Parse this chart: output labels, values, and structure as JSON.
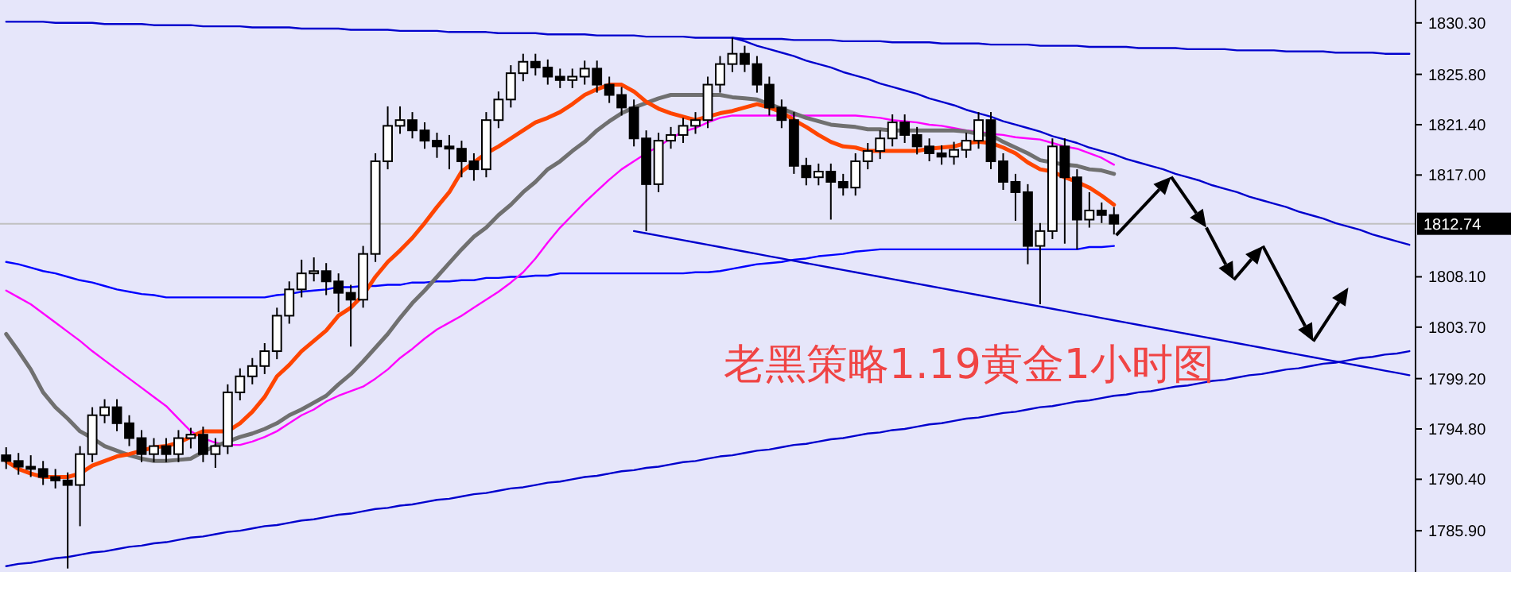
{
  "chart_data": {
    "type": "candlestick",
    "categories": [
      null,
      null,
      null,
      null,
      null,
      null,
      null,
      null,
      null,
      null,
      null,
      null,
      null,
      null,
      null,
      null,
      null,
      null,
      null,
      null,
      null,
      null,
      null,
      null,
      null,
      null,
      null,
      null,
      null,
      null,
      null,
      null,
      null,
      null,
      null,
      null,
      null,
      null,
      null,
      null,
      null,
      null,
      null,
      null,
      null,
      null,
      null,
      null,
      null,
      null,
      null,
      null,
      null,
      null,
      null,
      null,
      null,
      null,
      null,
      null,
      null,
      null,
      null,
      null,
      null,
      null,
      null,
      null,
      null,
      null,
      null,
      null,
      null,
      null,
      null,
      null,
      null,
      null,
      null,
      null,
      null,
      null,
      null,
      null,
      null,
      null,
      null,
      null,
      null,
      null,
      null,
      null,
      null,
      null,
      null,
      null,
      null,
      null,
      null,
      null,
      null,
      null,
      null,
      null,
      null,
      null,
      null,
      null,
      null,
      null,
      null,
      null,
      null,
      null,
      null
    ],
    "ohlc": [
      [
        1792.5,
        1793.2,
        1791.3,
        1792.0
      ],
      [
        1792.0,
        1792.7,
        1790.8,
        1791.5
      ],
      [
        1791.5,
        1792.5,
        1790.6,
        1791.3
      ],
      [
        1791.3,
        1792.0,
        1789.9,
        1790.6
      ],
      [
        1790.6,
        1791.3,
        1789.6,
        1790.3
      ],
      [
        1790.3,
        1791.0,
        1782.6,
        1789.9
      ],
      [
        1789.9,
        1793.3,
        1786.3,
        1792.6
      ],
      [
        1792.6,
        1796.7,
        1791.9,
        1796.0
      ],
      [
        1796.0,
        1797.4,
        1795.3,
        1796.7
      ],
      [
        1796.7,
        1797.4,
        1794.6,
        1795.3
      ],
      [
        1795.3,
        1796.0,
        1793.3,
        1794.0
      ],
      [
        1794.0,
        1794.7,
        1791.9,
        1792.6
      ],
      [
        1792.6,
        1794.0,
        1791.9,
        1793.3
      ],
      [
        1793.3,
        1794.0,
        1791.9,
        1792.6
      ],
      [
        1792.6,
        1794.7,
        1791.9,
        1794.0
      ],
      [
        1794.0,
        1794.9,
        1793.1,
        1794.3
      ],
      [
        1794.3,
        1795.0,
        1791.9,
        1792.6
      ],
      [
        1792.6,
        1794.0,
        1791.4,
        1793.3
      ],
      [
        1793.3,
        1798.7,
        1792.6,
        1798.0
      ],
      [
        1798.0,
        1800.1,
        1797.3,
        1799.4
      ],
      [
        1799.4,
        1801.0,
        1798.7,
        1800.3
      ],
      [
        1800.3,
        1802.3,
        1799.6,
        1801.6
      ],
      [
        1801.6,
        1805.4,
        1800.9,
        1804.7
      ],
      [
        1804.7,
        1807.7,
        1804.0,
        1807.0
      ],
      [
        1807.0,
        1809.6,
        1806.3,
        1808.4
      ],
      [
        1808.4,
        1809.8,
        1807.7,
        1808.6
      ],
      [
        1808.6,
        1809.3,
        1806.5,
        1807.7
      ],
      [
        1807.7,
        1808.4,
        1805.0,
        1806.7
      ],
      [
        1806.7,
        1807.4,
        1802.0,
        1806.1
      ],
      [
        1806.1,
        1810.8,
        1805.4,
        1810.1
      ],
      [
        1810.1,
        1818.9,
        1809.4,
        1818.2
      ],
      [
        1818.2,
        1823.0,
        1817.5,
        1821.3
      ],
      [
        1821.3,
        1823.0,
        1820.6,
        1821.8
      ],
      [
        1821.8,
        1822.5,
        1820.2,
        1820.9
      ],
      [
        1820.9,
        1821.6,
        1819.3,
        1820.0
      ],
      [
        1820.0,
        1820.7,
        1818.5,
        1819.5
      ],
      [
        1819.5,
        1820.5,
        1817.5,
        1819.3
      ],
      [
        1819.3,
        1820.0,
        1816.8,
        1818.2
      ],
      [
        1818.2,
        1818.9,
        1816.5,
        1817.5
      ],
      [
        1817.5,
        1822.5,
        1816.8,
        1821.8
      ],
      [
        1821.8,
        1824.3,
        1821.1,
        1823.6
      ],
      [
        1823.6,
        1826.6,
        1822.9,
        1825.9
      ],
      [
        1825.9,
        1827.6,
        1825.2,
        1826.9
      ],
      [
        1826.9,
        1827.6,
        1825.7,
        1826.4
      ],
      [
        1826.4,
        1827.1,
        1824.9,
        1825.6
      ],
      [
        1825.6,
        1826.3,
        1824.6,
        1825.3
      ],
      [
        1825.3,
        1826.3,
        1824.6,
        1825.6
      ],
      [
        1825.6,
        1827.0,
        1824.9,
        1826.3
      ],
      [
        1826.3,
        1827.0,
        1824.2,
        1824.9
      ],
      [
        1824.9,
        1825.6,
        1823.3,
        1824.0
      ],
      [
        1824.0,
        1824.7,
        1822.2,
        1822.9
      ],
      [
        1822.9,
        1823.6,
        1819.5,
        1820.2
      ],
      [
        1820.2,
        1820.9,
        1812.1,
        1816.2
      ],
      [
        1816.2,
        1820.7,
        1815.5,
        1820.0
      ],
      [
        1820.0,
        1821.2,
        1819.3,
        1820.5
      ],
      [
        1820.5,
        1822.0,
        1819.8,
        1821.3
      ],
      [
        1821.3,
        1822.5,
        1820.6,
        1821.8
      ],
      [
        1821.8,
        1825.6,
        1821.1,
        1824.9
      ],
      [
        1824.9,
        1827.4,
        1824.2,
        1826.7
      ],
      [
        1826.7,
        1829.0,
        1826.0,
        1827.6
      ],
      [
        1827.6,
        1828.3,
        1826.0,
        1826.7
      ],
      [
        1826.7,
        1827.4,
        1824.2,
        1824.9
      ],
      [
        1824.9,
        1825.6,
        1822.2,
        1822.9
      ],
      [
        1822.9,
        1823.6,
        1821.1,
        1821.8
      ],
      [
        1821.8,
        1822.5,
        1817.1,
        1817.8
      ],
      [
        1817.8,
        1818.5,
        1816.1,
        1816.8
      ],
      [
        1816.8,
        1818.0,
        1816.1,
        1817.3
      ],
      [
        1817.3,
        1818.0,
        1813.1,
        1816.4
      ],
      [
        1816.4,
        1817.1,
        1815.2,
        1815.9
      ],
      [
        1815.9,
        1818.9,
        1815.2,
        1818.2
      ],
      [
        1818.2,
        1819.8,
        1817.5,
        1819.1
      ],
      [
        1819.1,
        1820.9,
        1818.4,
        1820.2
      ],
      [
        1820.2,
        1822.3,
        1819.5,
        1821.6
      ],
      [
        1821.6,
        1822.3,
        1819.8,
        1820.5
      ],
      [
        1820.5,
        1821.2,
        1818.8,
        1819.5
      ],
      [
        1819.5,
        1820.2,
        1818.2,
        1818.9
      ],
      [
        1818.9,
        1819.6,
        1817.9,
        1818.6
      ],
      [
        1818.6,
        1819.9,
        1817.9,
        1819.2
      ],
      [
        1819.2,
        1820.7,
        1818.5,
        1820.0
      ],
      [
        1820.0,
        1822.5,
        1819.3,
        1821.8
      ],
      [
        1821.8,
        1822.5,
        1817.5,
        1818.2
      ],
      [
        1818.2,
        1818.9,
        1815.7,
        1816.4
      ],
      [
        1816.4,
        1817.1,
        1813.0,
        1815.5
      ],
      [
        1815.5,
        1816.2,
        1809.2,
        1810.8
      ],
      [
        1810.8,
        1812.8,
        1805.7,
        1812.1
      ],
      [
        1812.1,
        1820.2,
        1811.4,
        1819.5
      ],
      [
        1819.5,
        1820.2,
        1811.0,
        1816.8
      ],
      [
        1816.8,
        1817.5,
        1810.5,
        1813.1
      ],
      [
        1813.1,
        1815.5,
        1812.4,
        1813.9
      ],
      [
        1813.9,
        1814.6,
        1812.8,
        1813.5
      ],
      [
        1813.5,
        1814.2,
        1811.8,
        1812.74
      ],
      null,
      null,
      null,
      null,
      null,
      null,
      null,
      null,
      null,
      null,
      null,
      null,
      null,
      null,
      null,
      null,
      null,
      null,
      null,
      null,
      null,
      null,
      null,
      null
    ],
    "series": [
      {
        "type": "line",
        "color": "#0000ff",
        "values": [
          1809.4,
          1809.2,
          1808.9,
          1808.6,
          1808.4,
          1808.1,
          1807.8,
          1807.6,
          1807.3,
          1807.0,
          1806.8,
          1806.6,
          1806.5,
          1806.3,
          1806.3,
          1806.3,
          1806.3,
          1806.3,
          1806.3,
          1806.3,
          1806.3,
          1806.3,
          1806.5,
          1806.6,
          1806.8,
          1806.9,
          1807.0,
          1807.2,
          1807.2,
          1807.3,
          1807.3,
          1807.4,
          1807.4,
          1807.6,
          1807.6,
          1807.7,
          1807.7,
          1807.8,
          1807.8,
          1808.0,
          1808.0,
          1808.1,
          1808.1,
          1808.2,
          1808.2,
          1808.4,
          1808.4,
          1808.4,
          1808.4,
          1808.4,
          1808.4,
          1808.4,
          1808.4,
          1808.4,
          1808.4,
          1808.4,
          1808.5,
          1808.5,
          1808.6,
          1808.8,
          1809.0,
          1809.2,
          1809.3,
          1809.4,
          1809.6,
          1809.7,
          1809.9,
          1810.0,
          1810.1,
          1810.3,
          1810.4,
          1810.5,
          1810.5,
          1810.5,
          1810.5,
          1810.5,
          1810.5,
          1810.5,
          1810.5,
          1810.5,
          1810.5,
          1810.5,
          1810.5,
          1810.5,
          1810.5,
          1810.5,
          1810.5,
          1810.5,
          1810.7,
          1810.7,
          1810.8,
          null,
          null,
          null,
          null,
          null,
          null,
          null,
          null,
          null,
          null,
          null,
          null,
          null,
          null,
          null,
          null,
          null,
          null,
          null,
          null,
          null,
          null,
          null,
          null
        ]
      },
      {
        "type": "line",
        "color": "#ff00ff",
        "values": [
          1806.9,
          1806.3,
          1805.7,
          1804.9,
          1804.1,
          1803.3,
          1802.5,
          1801.6,
          1800.8,
          1800.0,
          1799.2,
          1798.4,
          1797.6,
          1796.8,
          1795.7,
          1794.6,
          1794.0,
          1793.6,
          1793.4,
          1793.4,
          1793.7,
          1794.1,
          1794.6,
          1795.3,
          1796.0,
          1796.5,
          1797.2,
          1797.7,
          1798.1,
          1798.5,
          1799.2,
          1800.0,
          1801.0,
          1801.8,
          1802.7,
          1803.5,
          1804.1,
          1804.7,
          1805.4,
          1806.1,
          1806.8,
          1807.6,
          1808.5,
          1809.7,
          1811.1,
          1812.4,
          1813.5,
          1814.6,
          1815.6,
          1816.6,
          1817.5,
          1818.2,
          1818.9,
          1819.5,
          1820.2,
          1820.8,
          1821.1,
          1821.6,
          1822.0,
          1822.2,
          1822.2,
          1822.2,
          1822.2,
          1822.2,
          1822.2,
          1822.2,
          1822.2,
          1822.2,
          1822.2,
          1822.2,
          1822.1,
          1822.0,
          1821.8,
          1821.7,
          1821.6,
          1821.4,
          1821.3,
          1821.1,
          1820.9,
          1820.8,
          1820.6,
          1820.5,
          1820.3,
          1820.2,
          1820.1,
          1819.8,
          1819.5,
          1819.3,
          1818.9,
          1818.5,
          1817.9,
          null,
          null,
          null,
          null,
          null,
          null,
          null,
          null,
          null,
          null,
          null,
          null,
          null,
          null,
          null,
          null,
          null,
          null,
          null,
          null,
          null,
          null,
          null,
          null
        ]
      },
      {
        "type": "line",
        "color": "#707070",
        "values": [
          1803.1,
          1801.6,
          1800.0,
          1798.0,
          1796.7,
          1795.7,
          1794.6,
          1794.0,
          1793.3,
          1792.9,
          1792.5,
          1792.2,
          1792.0,
          1792.0,
          1792.1,
          1792.2,
          1792.8,
          1793.3,
          1793.7,
          1794.1,
          1794.4,
          1794.8,
          1795.3,
          1796.0,
          1796.5,
          1797.1,
          1797.7,
          1798.7,
          1799.6,
          1800.7,
          1801.9,
          1803.1,
          1804.5,
          1805.8,
          1806.9,
          1808.1,
          1809.3,
          1810.5,
          1811.6,
          1812.4,
          1813.5,
          1814.4,
          1815.5,
          1816.4,
          1817.5,
          1818.2,
          1819.1,
          1819.9,
          1820.9,
          1821.7,
          1822.4,
          1822.9,
          1823.3,
          1823.7,
          1824.0,
          1824.0,
          1824.0,
          1824.0,
          1824.0,
          1823.8,
          1823.7,
          1823.6,
          1823.2,
          1822.8,
          1822.4,
          1822.0,
          1821.7,
          1821.4,
          1821.3,
          1821.2,
          1821.0,
          1821.0,
          1820.9,
          1820.9,
          1820.9,
          1820.9,
          1820.9,
          1820.9,
          1820.8,
          1820.6,
          1820.5,
          1819.9,
          1819.4,
          1818.9,
          1818.3,
          1818.1,
          1817.9,
          1817.8,
          1817.5,
          1817.4,
          1817.1,
          null,
          null,
          null,
          null,
          null,
          null,
          null,
          null,
          null,
          null,
          null,
          null,
          null,
          null,
          null,
          null,
          null,
          null,
          null,
          null,
          null,
          null,
          null,
          null
        ]
      },
      {
        "type": "line",
        "color": "#ff4500",
        "values": [
          1792.0,
          1791.3,
          1790.9,
          1790.6,
          1790.6,
          1790.6,
          1790.9,
          1791.6,
          1792.0,
          1792.4,
          1792.6,
          1792.9,
          1793.2,
          1793.3,
          1793.6,
          1794.1,
          1794.6,
          1794.6,
          1794.6,
          1795.3,
          1796.3,
          1797.6,
          1799.4,
          1800.4,
          1801.6,
          1802.5,
          1803.4,
          1804.7,
          1805.4,
          1806.5,
          1808.1,
          1809.4,
          1810.4,
          1811.5,
          1812.8,
          1814.2,
          1815.5,
          1817.3,
          1818.1,
          1818.9,
          1819.5,
          1820.2,
          1820.9,
          1821.6,
          1822.0,
          1822.5,
          1823.2,
          1824.0,
          1824.5,
          1824.9,
          1824.9,
          1824.3,
          1823.4,
          1822.8,
          1822.4,
          1822.1,
          1821.8,
          1822.1,
          1822.4,
          1822.6,
          1822.9,
          1823.2,
          1822.9,
          1822.5,
          1821.8,
          1821.2,
          1820.5,
          1819.9,
          1819.5,
          1819.4,
          1819.1,
          1819.1,
          1819.1,
          1819.1,
          1819.1,
          1819.3,
          1819.4,
          1819.5,
          1819.8,
          1819.9,
          1819.8,
          1819.4,
          1818.9,
          1818.1,
          1817.5,
          1817.3,
          1816.8,
          1816.4,
          1815.9,
          1815.2,
          1814.4,
          null,
          null,
          null,
          null,
          null,
          null,
          null,
          null,
          null,
          null,
          null,
          null,
          null,
          null,
          null,
          null,
          null,
          null,
          null,
          null,
          null,
          null,
          null,
          null
        ]
      },
      {
        "type": "line",
        "color": "#0000cd",
        "values": [
          1830.4,
          1830.4,
          1830.4,
          1830.4,
          1830.3,
          1830.3,
          1830.3,
          1830.3,
          1830.2,
          1830.2,
          1830.2,
          1830.2,
          1830.1,
          1830.1,
          1830.1,
          1830.1,
          1830.0,
          1830.0,
          1830.0,
          1830.0,
          1829.9,
          1829.9,
          1829.9,
          1829.9,
          1829.8,
          1829.8,
          1829.8,
          1829.8,
          1829.7,
          1829.7,
          1829.7,
          1829.7,
          1829.6,
          1829.6,
          1829.6,
          1829.6,
          1829.5,
          1829.5,
          1829.5,
          1829.5,
          1829.4,
          1829.4,
          1829.4,
          1829.4,
          1829.3,
          1829.3,
          1829.3,
          1829.3,
          1829.2,
          1829.2,
          1829.2,
          1829.2,
          1829.1,
          1829.1,
          1829.1,
          1829.1,
          1829.0,
          1829.0,
          1829.0,
          1829.0,
          1828.9,
          1828.9,
          1828.9,
          1828.9,
          1828.8,
          1828.8,
          1828.8,
          1828.8,
          1828.7,
          1828.7,
          1828.7,
          1828.7,
          1828.6,
          1828.6,
          1828.6,
          1828.6,
          1828.5,
          1828.5,
          1828.5,
          1828.5,
          1828.4,
          1828.4,
          1828.4,
          1828.4,
          1828.3,
          1828.3,
          1828.3,
          1828.3,
          1828.2,
          1828.2,
          1828.2,
          1828.2,
          1828.1,
          1828.1,
          1828.1,
          1828.1,
          1828.0,
          1828.0,
          1828.0,
          1828.0,
          1827.9,
          1827.9,
          1827.9,
          1827.9,
          1827.8,
          1827.8,
          1827.8,
          1827.8,
          1827.7,
          1827.7,
          1827.7,
          1827.7,
          1827.6,
          1827.6,
          1827.6
        ]
      },
      {
        "type": "line",
        "color": "#0000cd",
        "values": [
          null,
          null,
          null,
          null,
          null,
          null,
          null,
          null,
          null,
          null,
          null,
          null,
          null,
          null,
          null,
          null,
          null,
          null,
          null,
          null,
          null,
          null,
          null,
          null,
          null,
          null,
          null,
          null,
          null,
          null,
          null,
          null,
          null,
          null,
          null,
          null,
          null,
          null,
          null,
          null,
          null,
          null,
          null,
          null,
          null,
          null,
          null,
          null,
          null,
          null,
          null,
          null,
          null,
          null,
          null,
          null,
          null,
          null,
          null,
          1829.0,
          1828.7,
          1828.3,
          1828.0,
          1827.7,
          1827.4,
          1827.0,
          1826.7,
          1826.4,
          1826.0,
          1825.7,
          1825.4,
          1825.0,
          1824.7,
          1824.4,
          1824.1,
          1823.7,
          1823.4,
          1823.1,
          1822.7,
          1822.4,
          1822.1,
          1821.7,
          1821.4,
          1821.1,
          1820.8,
          1820.4,
          1820.1,
          1819.8,
          1819.4,
          1819.1,
          1818.8,
          1818.4,
          1818.1,
          1817.8,
          1817.5,
          1817.1,
          1816.8,
          1816.5,
          1816.1,
          1815.8,
          1815.5,
          1815.1,
          1814.8,
          1814.5,
          1814.2,
          1813.8,
          1813.5,
          1813.2,
          1812.8,
          1812.5,
          1812.2,
          1811.8,
          1811.5,
          1811.2,
          1810.9
        ]
      },
      {
        "type": "line",
        "color": "#0000cd",
        "values": [
          null,
          null,
          null,
          null,
          null,
          null,
          null,
          null,
          null,
          null,
          null,
          null,
          null,
          null,
          null,
          null,
          null,
          null,
          null,
          null,
          null,
          null,
          null,
          null,
          null,
          null,
          null,
          null,
          null,
          null,
          null,
          null,
          null,
          null,
          null,
          null,
          null,
          null,
          null,
          null,
          null,
          null,
          null,
          null,
          null,
          null,
          null,
          null,
          null,
          null,
          null,
          1812.1,
          1811.9,
          1811.7,
          1811.5,
          1811.3,
          1811.1,
          1810.9,
          1810.7,
          1810.5,
          1810.3,
          1810.1,
          1809.9,
          1809.7,
          1809.5,
          1809.3,
          1809.1,
          1808.9,
          1808.7,
          1808.5,
          1808.3,
          1808.1,
          1807.9,
          1807.7,
          1807.5,
          1807.3,
          1807.1,
          1806.9,
          1806.7,
          1806.5,
          1806.3,
          1806.1,
          1805.9,
          1805.7,
          1805.5,
          1805.3,
          1805.1,
          1804.9,
          1804.7,
          1804.5,
          1804.3,
          1804.1,
          1803.9,
          1803.7,
          1803.5,
          1803.3,
          1803.1,
          1802.9,
          1802.7,
          1802.5,
          1802.3,
          1802.1,
          1801.9,
          1801.7,
          1801.5,
          1801.3,
          1801.1,
          1800.9,
          1800.7,
          1800.5,
          1800.3,
          1800.1,
          1799.9,
          1799.7,
          1799.5
        ]
      },
      {
        "type": "line",
        "color": "#0000cd",
        "values": [
          1782.8,
          1783.0,
          1783.1,
          1783.3,
          1783.5,
          1783.6,
          1783.8,
          1784.0,
          1784.1,
          1784.3,
          1784.5,
          1784.6,
          1784.8,
          1784.9,
          1785.1,
          1785.3,
          1785.4,
          1785.6,
          1785.8,
          1785.9,
          1786.1,
          1786.3,
          1786.4,
          1786.6,
          1786.8,
          1786.9,
          1787.1,
          1787.3,
          1787.4,
          1787.6,
          1787.8,
          1787.9,
          1788.1,
          1788.2,
          1788.4,
          1788.6,
          1788.7,
          1788.9,
          1789.1,
          1789.2,
          1789.4,
          1789.6,
          1789.7,
          1789.9,
          1790.1,
          1790.2,
          1790.4,
          1790.6,
          1790.7,
          1790.9,
          1791.1,
          1791.2,
          1791.4,
          1791.5,
          1791.7,
          1791.9,
          1792.0,
          1792.2,
          1792.4,
          1792.5,
          1792.7,
          1792.9,
          1793.0,
          1793.2,
          1793.4,
          1793.5,
          1793.7,
          1793.9,
          1794.0,
          1794.2,
          1794.4,
          1794.5,
          1794.7,
          1794.8,
          1795.0,
          1795.2,
          1795.3,
          1795.5,
          1795.7,
          1795.8,
          1796.0,
          1796.2,
          1796.3,
          1796.5,
          1796.7,
          1796.8,
          1797.0,
          1797.2,
          1797.3,
          1797.5,
          1797.7,
          1797.8,
          1798.0,
          1798.1,
          1798.3,
          1798.5,
          1798.6,
          1798.8,
          1799.0,
          1799.1,
          1799.3,
          1799.5,
          1799.6,
          1799.8,
          1800.0,
          1800.1,
          1800.3,
          1800.5,
          1800.6,
          1800.8,
          1801.0,
          1801.1,
          1801.3,
          1801.4,
          1801.6
        ]
      }
    ],
    "ylim": [
      1782.3,
      1832.3
    ],
    "yticks": [
      {
        "value": 1785.9,
        "label": "1785.90"
      },
      {
        "value": 1790.4,
        "label": "1790.40"
      },
      {
        "value": 1794.8,
        "label": "1794.80"
      },
      {
        "value": 1799.2,
        "label": "1799.20"
      },
      {
        "value": 1803.7,
        "label": "1803.70"
      },
      {
        "value": 1808.1,
        "label": "1808.10"
      },
      {
        "value": 1817.0,
        "label": "1817.00"
      },
      {
        "value": 1821.4,
        "label": "1821.40"
      },
      {
        "value": 1825.8,
        "label": "1825.80"
      },
      {
        "value": 1830.3,
        "label": "1830.30"
      }
    ],
    "tick_labels": "y",
    "ref_lines": [
      {
        "axis": "y",
        "value": 1812.74,
        "label": "1812.74",
        "color": "#c0c0c0"
      }
    ],
    "annotations": [
      "老黑策略1.19黄金1小时图"
    ]
  }
}
